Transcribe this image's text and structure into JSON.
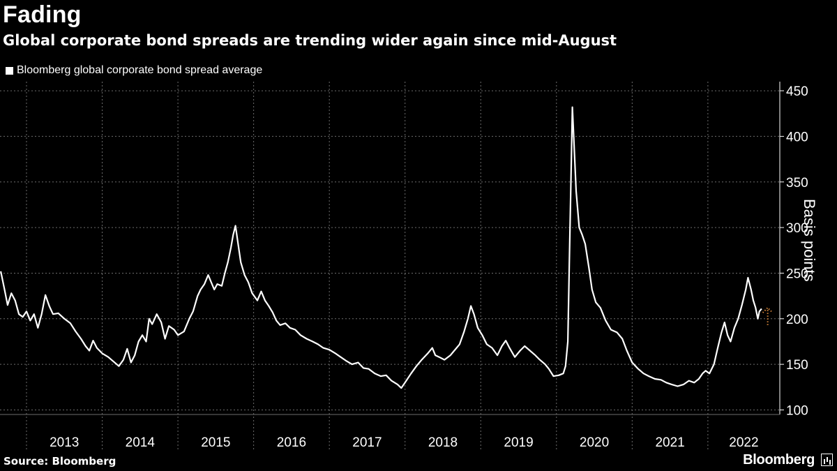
{
  "header": {
    "title": "Fading",
    "subtitle": "Global corporate bond spreads are trending wider again since mid-August"
  },
  "legend": {
    "label": "Bloomberg global corporate bond spread average",
    "color": "#ffffff"
  },
  "footer": {
    "source": "Source: Bloomberg",
    "brand": "Bloomberg"
  },
  "colors": {
    "background": "#000000",
    "line": "#ffffff",
    "grid": "#6e6e6e",
    "annotation": "#d8873a"
  },
  "chart_data": {
    "type": "line",
    "title": "Fading",
    "ylabel": "Basis points",
    "xlabel": "",
    "ylim": [
      95,
      460
    ],
    "yticks": [
      100,
      150,
      200,
      250,
      300,
      350,
      400,
      450
    ],
    "xlim": [
      2012.65,
      2022.95
    ],
    "xtick_labels": [
      "2013",
      "2014",
      "2015",
      "2016",
      "2017",
      "2018",
      "2019",
      "2020",
      "2021",
      "2022"
    ],
    "series": [
      {
        "name": "Bloomberg global corporate bond spread average",
        "points": [
          [
            2012.66,
            252
          ],
          [
            2012.71,
            232
          ],
          [
            2012.75,
            215
          ],
          [
            2012.8,
            228
          ],
          [
            2012.85,
            220
          ],
          [
            2012.9,
            205
          ],
          [
            2012.95,
            202
          ],
          [
            2013.0,
            208
          ],
          [
            2013.05,
            198
          ],
          [
            2013.1,
            205
          ],
          [
            2013.15,
            190
          ],
          [
            2013.2,
            205
          ],
          [
            2013.25,
            226
          ],
          [
            2013.3,
            214
          ],
          [
            2013.35,
            205
          ],
          [
            2013.42,
            206
          ],
          [
            2013.5,
            200
          ],
          [
            2013.58,
            195
          ],
          [
            2013.65,
            186
          ],
          [
            2013.72,
            178
          ],
          [
            2013.78,
            170
          ],
          [
            2013.83,
            165
          ],
          [
            2013.88,
            176
          ],
          [
            2013.93,
            168
          ],
          [
            2014.0,
            162
          ],
          [
            2014.08,
            158
          ],
          [
            2014.15,
            153
          ],
          [
            2014.22,
            148
          ],
          [
            2014.28,
            155
          ],
          [
            2014.33,
            167
          ],
          [
            2014.38,
            152
          ],
          [
            2014.43,
            160
          ],
          [
            2014.48,
            175
          ],
          [
            2014.53,
            182
          ],
          [
            2014.58,
            175
          ],
          [
            2014.62,
            200
          ],
          [
            2014.66,
            194
          ],
          [
            2014.72,
            205
          ],
          [
            2014.78,
            196
          ],
          [
            2014.83,
            178
          ],
          [
            2014.88,
            192
          ],
          [
            2014.95,
            188
          ],
          [
            2015.0,
            182
          ],
          [
            2015.08,
            186
          ],
          [
            2015.15,
            200
          ],
          [
            2015.2,
            208
          ],
          [
            2015.26,
            225
          ],
          [
            2015.3,
            232
          ],
          [
            2015.35,
            238
          ],
          [
            2015.4,
            248
          ],
          [
            2015.44,
            240
          ],
          [
            2015.48,
            232
          ],
          [
            2015.52,
            238
          ],
          [
            2015.58,
            236
          ],
          [
            2015.62,
            250
          ],
          [
            2015.66,
            262
          ],
          [
            2015.7,
            278
          ],
          [
            2015.73,
            292
          ],
          [
            2015.76,
            302
          ],
          [
            2015.79,
            285
          ],
          [
            2015.83,
            262
          ],
          [
            2015.88,
            248
          ],
          [
            2015.93,
            240
          ],
          [
            2015.98,
            228
          ],
          [
            2016.05,
            220
          ],
          [
            2016.1,
            230
          ],
          [
            2016.15,
            220
          ],
          [
            2016.2,
            214
          ],
          [
            2016.25,
            207
          ],
          [
            2016.3,
            198
          ],
          [
            2016.35,
            193
          ],
          [
            2016.42,
            195
          ],
          [
            2016.48,
            190
          ],
          [
            2016.55,
            188
          ],
          [
            2016.62,
            182
          ],
          [
            2016.7,
            178
          ],
          [
            2016.78,
            175
          ],
          [
            2016.85,
            172
          ],
          [
            2016.92,
            168
          ],
          [
            2017.0,
            166
          ],
          [
            2017.08,
            162
          ],
          [
            2017.15,
            158
          ],
          [
            2017.22,
            154
          ],
          [
            2017.3,
            150
          ],
          [
            2017.38,
            152
          ],
          [
            2017.45,
            146
          ],
          [
            2017.52,
            145
          ],
          [
            2017.6,
            140
          ],
          [
            2017.68,
            137
          ],
          [
            2017.75,
            138
          ],
          [
            2017.82,
            132
          ],
          [
            2017.9,
            128
          ],
          [
            2017.95,
            124
          ],
          [
            2018.0,
            130
          ],
          [
            2018.08,
            140
          ],
          [
            2018.15,
            148
          ],
          [
            2018.22,
            155
          ],
          [
            2018.3,
            162
          ],
          [
            2018.36,
            168
          ],
          [
            2018.4,
            160
          ],
          [
            2018.45,
            158
          ],
          [
            2018.52,
            155
          ],
          [
            2018.6,
            160
          ],
          [
            2018.65,
            165
          ],
          [
            2018.72,
            172
          ],
          [
            2018.78,
            186
          ],
          [
            2018.83,
            200
          ],
          [
            2018.87,
            214
          ],
          [
            2018.91,
            205
          ],
          [
            2018.96,
            190
          ],
          [
            2019.02,
            182
          ],
          [
            2019.08,
            172
          ],
          [
            2019.15,
            168
          ],
          [
            2019.22,
            160
          ],
          [
            2019.28,
            170
          ],
          [
            2019.33,
            176
          ],
          [
            2019.38,
            168
          ],
          [
            2019.45,
            158
          ],
          [
            2019.52,
            165
          ],
          [
            2019.58,
            170
          ],
          [
            2019.65,
            165
          ],
          [
            2019.72,
            160
          ],
          [
            2019.78,
            155
          ],
          [
            2019.85,
            150
          ],
          [
            2019.9,
            145
          ],
          [
            2019.96,
            137
          ],
          [
            2020.03,
            138
          ],
          [
            2020.09,
            140
          ],
          [
            2020.12,
            148
          ],
          [
            2020.15,
            175
          ],
          [
            2020.17,
            260
          ],
          [
            2020.19,
            345
          ],
          [
            2020.21,
            432
          ],
          [
            2020.23,
            395
          ],
          [
            2020.26,
            340
          ],
          [
            2020.3,
            300
          ],
          [
            2020.34,
            292
          ],
          [
            2020.38,
            282
          ],
          [
            2020.43,
            255
          ],
          [
            2020.47,
            232
          ],
          [
            2020.52,
            218
          ],
          [
            2020.58,
            212
          ],
          [
            2020.65,
            198
          ],
          [
            2020.72,
            188
          ],
          [
            2020.8,
            185
          ],
          [
            2020.87,
            178
          ],
          [
            2020.93,
            165
          ],
          [
            2021.0,
            152
          ],
          [
            2021.08,
            145
          ],
          [
            2021.15,
            140
          ],
          [
            2021.22,
            137
          ],
          [
            2021.3,
            134
          ],
          [
            2021.38,
            133
          ],
          [
            2021.45,
            130
          ],
          [
            2021.52,
            128
          ],
          [
            2021.6,
            126
          ],
          [
            2021.68,
            128
          ],
          [
            2021.75,
            132
          ],
          [
            2021.82,
            130
          ],
          [
            2021.88,
            134
          ],
          [
            2021.93,
            140
          ],
          [
            2021.97,
            143
          ],
          [
            2022.02,
            140
          ],
          [
            2022.08,
            150
          ],
          [
            2022.13,
            168
          ],
          [
            2022.18,
            185
          ],
          [
            2022.22,
            196
          ],
          [
            2022.26,
            182
          ],
          [
            2022.3,
            175
          ],
          [
            2022.35,
            190
          ],
          [
            2022.4,
            200
          ],
          [
            2022.45,
            215
          ],
          [
            2022.5,
            232
          ],
          [
            2022.53,
            245
          ],
          [
            2022.57,
            232
          ],
          [
            2022.6,
            220
          ],
          [
            2022.63,
            212
          ],
          [
            2022.66,
            200
          ],
          [
            2022.68,
            208
          ],
          [
            2022.71,
            211
          ]
        ]
      }
    ],
    "annotation": {
      "type": "arrow-up",
      "x": 2022.79,
      "from": 193,
      "to": 212
    }
  }
}
